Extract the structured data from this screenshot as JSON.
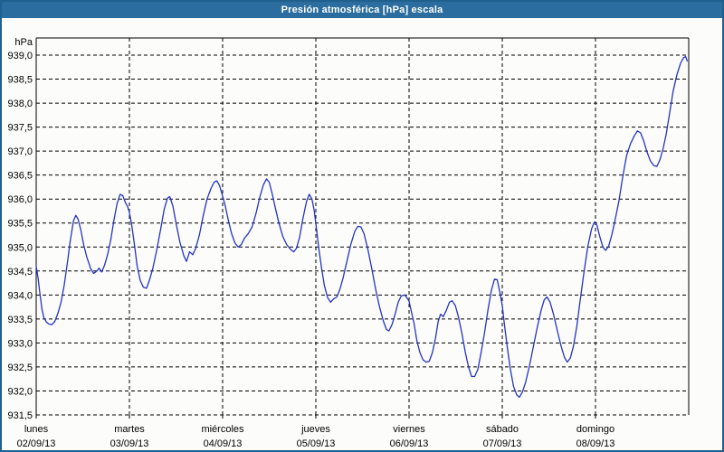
{
  "title_bar": {
    "text": "Presión atmosférica [hPa] escala"
  },
  "colors": {
    "titlebar_bg": "#2b6d9e",
    "panel_border": "#20608f",
    "plot_bg": "#fcfdfa",
    "grid": "#000000",
    "line": "#2433c4",
    "title_text": "#ffffff"
  },
  "chart_data": {
    "type": "line",
    "title": "Presión atmosférica [hPa] escala",
    "ylabel": "hPa",
    "ylim": [
      931.5,
      939.0
    ],
    "y_tick_step": 0.5,
    "y_tick_labels": [
      "939,0",
      "938,5",
      "938,0",
      "937,5",
      "937,0",
      "936,5",
      "936,0",
      "935,5",
      "935,0",
      "934,5",
      "934,0",
      "933,5",
      "933,0",
      "932,5",
      "932,0",
      "931,5"
    ],
    "xlim_hours": [
      0,
      168
    ],
    "grid": "dashed-black",
    "legend": "none",
    "x_days": [
      {
        "name": "lunes",
        "date": "02/09/13"
      },
      {
        "name": "martes",
        "date": "03/09/13"
      },
      {
        "name": "miércoles",
        "date": "04/09/13"
      },
      {
        "name": "jueves",
        "date": "05/09/13"
      },
      {
        "name": "viernes",
        "date": "06/09/13"
      },
      {
        "name": "sábado",
        "date": "07/09/13"
      },
      {
        "name": "domingo",
        "date": "08/09/13"
      }
    ],
    "series": [
      {
        "color": "#2433c4",
        "points": [
          [
            0,
            934.6
          ],
          [
            0.5,
            934.35
          ],
          [
            1,
            934.0
          ],
          [
            1.5,
            933.7
          ],
          [
            2,
            933.52
          ],
          [
            2.6,
            933.44
          ],
          [
            3.2,
            933.4
          ],
          [
            4,
            933.38
          ],
          [
            4.8,
            933.45
          ],
          [
            5.6,
            933.62
          ],
          [
            6.4,
            933.85
          ],
          [
            7.2,
            934.2
          ],
          [
            8,
            934.65
          ],
          [
            8.8,
            935.15
          ],
          [
            9.6,
            935.55
          ],
          [
            10.2,
            935.66
          ],
          [
            10.8,
            935.58
          ],
          [
            11.5,
            935.35
          ],
          [
            12.2,
            935.05
          ],
          [
            13,
            934.8
          ],
          [
            14,
            934.55
          ],
          [
            14.8,
            934.45
          ],
          [
            15.6,
            934.5
          ],
          [
            16.2,
            934.56
          ],
          [
            16.9,
            934.48
          ],
          [
            17.6,
            934.62
          ],
          [
            18.4,
            934.85
          ],
          [
            19.2,
            935.15
          ],
          [
            20,
            935.55
          ],
          [
            20.8,
            935.9
          ],
          [
            21.6,
            936.1
          ],
          [
            22.3,
            936.07
          ],
          [
            23,
            935.92
          ],
          [
            23.5,
            935.85
          ],
          [
            24,
            935.72
          ],
          [
            24.6,
            935.45
          ],
          [
            25.2,
            935.1
          ],
          [
            26,
            934.6
          ],
          [
            26.8,
            934.3
          ],
          [
            27.6,
            934.16
          ],
          [
            28.4,
            934.14
          ],
          [
            29.2,
            934.32
          ],
          [
            30,
            934.55
          ],
          [
            31,
            934.92
          ],
          [
            32,
            935.35
          ],
          [
            33,
            935.8
          ],
          [
            33.8,
            936.02
          ],
          [
            34.4,
            936.05
          ],
          [
            35.2,
            935.85
          ],
          [
            36,
            935.5
          ],
          [
            37,
            935.1
          ],
          [
            38,
            934.82
          ],
          [
            38.7,
            934.7
          ],
          [
            39.5,
            934.9
          ],
          [
            40.3,
            934.84
          ],
          [
            41,
            934.96
          ],
          [
            42,
            935.25
          ],
          [
            43,
            935.65
          ],
          [
            44,
            936.0
          ],
          [
            45,
            936.22
          ],
          [
            45.8,
            936.35
          ],
          [
            46.5,
            936.38
          ],
          [
            47.2,
            936.28
          ],
          [
            48,
            936.06
          ],
          [
            48.7,
            935.85
          ],
          [
            49.5,
            935.55
          ],
          [
            50.3,
            935.28
          ],
          [
            51.2,
            935.08
          ],
          [
            52,
            935.0
          ],
          [
            52.8,
            935.05
          ],
          [
            53.6,
            935.18
          ],
          [
            54.6,
            935.28
          ],
          [
            55.6,
            935.42
          ],
          [
            56.6,
            935.7
          ],
          [
            57.6,
            936.05
          ],
          [
            58.5,
            936.3
          ],
          [
            59.3,
            936.42
          ],
          [
            60,
            936.35
          ],
          [
            60.8,
            936.1
          ],
          [
            61.6,
            935.8
          ],
          [
            62.5,
            935.5
          ],
          [
            63.5,
            935.22
          ],
          [
            64.5,
            935.05
          ],
          [
            65.5,
            934.95
          ],
          [
            66.3,
            934.9
          ],
          [
            67,
            934.97
          ],
          [
            67.8,
            935.2
          ],
          [
            68.7,
            935.6
          ],
          [
            69.6,
            935.95
          ],
          [
            70.3,
            936.1
          ],
          [
            71,
            936.0
          ],
          [
            71.6,
            935.75
          ],
          [
            72.2,
            935.35
          ],
          [
            72.8,
            934.95
          ],
          [
            73.5,
            934.55
          ],
          [
            74.2,
            934.2
          ],
          [
            75,
            933.95
          ],
          [
            75.8,
            933.85
          ],
          [
            76.6,
            933.92
          ],
          [
            77.4,
            933.96
          ],
          [
            78.2,
            934.12
          ],
          [
            79,
            934.35
          ],
          [
            80,
            934.7
          ],
          [
            81,
            935.05
          ],
          [
            82,
            935.32
          ],
          [
            82.8,
            935.43
          ],
          [
            83.6,
            935.42
          ],
          [
            84.4,
            935.28
          ],
          [
            85.4,
            934.95
          ],
          [
            86.4,
            934.55
          ],
          [
            87.4,
            934.12
          ],
          [
            88.4,
            933.75
          ],
          [
            89.4,
            933.45
          ],
          [
            90.2,
            933.28
          ],
          [
            90.8,
            933.25
          ],
          [
            91.6,
            933.38
          ],
          [
            92.4,
            933.6
          ],
          [
            93.2,
            933.85
          ],
          [
            94,
            933.98
          ],
          [
            94.8,
            934.0
          ],
          [
            95.4,
            933.95
          ],
          [
            96,
            933.87
          ],
          [
            96.6,
            933.65
          ],
          [
            97.3,
            933.4
          ],
          [
            98,
            933.05
          ],
          [
            98.8,
            932.8
          ],
          [
            99.6,
            932.65
          ],
          [
            100.4,
            932.6
          ],
          [
            101.2,
            932.62
          ],
          [
            102,
            932.8
          ],
          [
            102.8,
            933.1
          ],
          [
            103.5,
            933.45
          ],
          [
            104.1,
            933.6
          ],
          [
            104.8,
            933.55
          ],
          [
            105.6,
            933.68
          ],
          [
            106.4,
            933.85
          ],
          [
            107.1,
            933.88
          ],
          [
            107.9,
            933.78
          ],
          [
            108.7,
            933.55
          ],
          [
            109.6,
            933.2
          ],
          [
            110.5,
            932.8
          ],
          [
            111.3,
            932.5
          ],
          [
            112.1,
            932.3
          ],
          [
            112.9,
            932.3
          ],
          [
            113.7,
            932.45
          ],
          [
            114.5,
            932.78
          ],
          [
            115.4,
            933.2
          ],
          [
            116.3,
            933.68
          ],
          [
            117.2,
            934.1
          ],
          [
            118,
            934.33
          ],
          [
            118.7,
            934.32
          ],
          [
            119.4,
            934.05
          ],
          [
            120,
            933.78
          ],
          [
            120.6,
            933.35
          ],
          [
            121.3,
            932.9
          ],
          [
            122.1,
            932.45
          ],
          [
            122.9,
            932.1
          ],
          [
            123.7,
            931.92
          ],
          [
            124.4,
            931.87
          ],
          [
            125.2,
            931.98
          ],
          [
            126,
            932.18
          ],
          [
            127,
            932.52
          ],
          [
            128,
            932.92
          ],
          [
            129,
            933.32
          ],
          [
            130,
            933.68
          ],
          [
            130.8,
            933.9
          ],
          [
            131.5,
            933.96
          ],
          [
            132.3,
            933.85
          ],
          [
            133.2,
            933.6
          ],
          [
            134.2,
            933.25
          ],
          [
            135.2,
            932.92
          ],
          [
            136,
            932.7
          ],
          [
            136.7,
            932.6
          ],
          [
            137.5,
            932.68
          ],
          [
            138.3,
            932.92
          ],
          [
            139.2,
            933.35
          ],
          [
            140,
            933.85
          ],
          [
            141,
            934.45
          ],
          [
            142,
            935.0
          ],
          [
            143,
            935.38
          ],
          [
            143.7,
            935.52
          ],
          [
            144.4,
            935.45
          ],
          [
            145.1,
            935.22
          ],
          [
            145.9,
            935.0
          ],
          [
            146.6,
            934.93
          ],
          [
            147.4,
            935.02
          ],
          [
            148.2,
            935.25
          ],
          [
            149,
            935.55
          ],
          [
            150,
            935.95
          ],
          [
            151,
            936.45
          ],
          [
            152,
            936.9
          ],
          [
            153,
            937.15
          ],
          [
            154,
            937.32
          ],
          [
            154.8,
            937.42
          ],
          [
            155.6,
            937.38
          ],
          [
            156.4,
            937.22
          ],
          [
            157.2,
            937.0
          ],
          [
            158.1,
            936.8
          ],
          [
            159,
            936.7
          ],
          [
            159.8,
            936.68
          ],
          [
            160.6,
            936.82
          ],
          [
            161.4,
            937.05
          ],
          [
            162.2,
            937.35
          ],
          [
            163.1,
            937.8
          ],
          [
            164,
            938.25
          ],
          [
            165,
            938.6
          ],
          [
            165.9,
            938.83
          ],
          [
            166.7,
            938.95
          ],
          [
            167.2,
            938.97
          ],
          [
            167.6,
            938.88
          ]
        ]
      }
    ]
  }
}
